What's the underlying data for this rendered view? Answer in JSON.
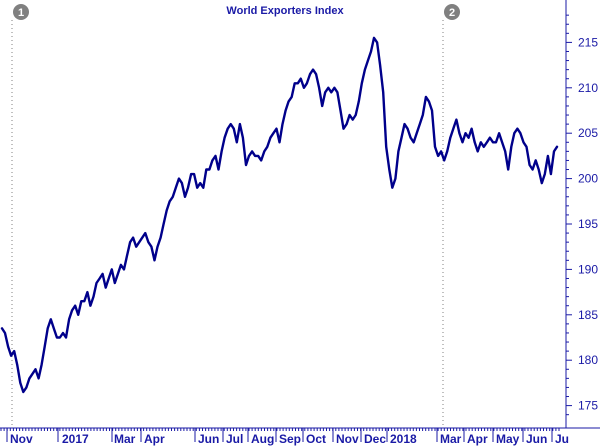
{
  "chart_data": {
    "type": "line",
    "title": "World Exporters Index",
    "series": [
      {
        "values": [
          183.5,
          183,
          181.5,
          180.5,
          181,
          179.5,
          177.5,
          176.5,
          177,
          178,
          178.5,
          179,
          178,
          179.5,
          181.5,
          183.5,
          184.5,
          183.5,
          182.5,
          182.5,
          183,
          182.5,
          184.5,
          185.5,
          186,
          185,
          186.5,
          186.5,
          187.5,
          186,
          187,
          188.5,
          189,
          189.5,
          188,
          189,
          190,
          188.5,
          189.5,
          190.5,
          190,
          191.5,
          193,
          193.5,
          192.5,
          193,
          193.5,
          194,
          193,
          192.5,
          191,
          192.5,
          193.5,
          195,
          196.5,
          197.5,
          198,
          199,
          200,
          199.5,
          198,
          199,
          200.5,
          200.5,
          199,
          199.5,
          199,
          201,
          201,
          202,
          202.5,
          201,
          203,
          204.5,
          205.5,
          206,
          205.5,
          204,
          206,
          204.5,
          201.5,
          202.5,
          203,
          202.5,
          202.5,
          202,
          203,
          203.5,
          204.5,
          205,
          205.5,
          204,
          206,
          207.5,
          208.5,
          209,
          210.5,
          210.5,
          211,
          210,
          210.5,
          211.5,
          212,
          211.5,
          210,
          208,
          209.5,
          210,
          209.5,
          210,
          209.5,
          207.5,
          205.5,
          206,
          207,
          206.5,
          207,
          208.5,
          210.5,
          212,
          213,
          214,
          215.5,
          215,
          212.5,
          209.5,
          203.5,
          201,
          199,
          200,
          203,
          204.5,
          206,
          205.5,
          204.5,
          204,
          205,
          206,
          207,
          209,
          208.5,
          207.5,
          203.5,
          202.5,
          203,
          202,
          203,
          204.5,
          205.5,
          206.5,
          205,
          204,
          205,
          204.5,
          205.5,
          204,
          203,
          204,
          203.5,
          204,
          204.5,
          204,
          204,
          205,
          204,
          203,
          201,
          203.5,
          205,
          205.5,
          205,
          204,
          203.5,
          201.5,
          201,
          202,
          201,
          199.5,
          200.5,
          202.5,
          200.5,
          203,
          203.5
        ]
      }
    ],
    "x_labels": [
      "Nov",
      "2017",
      "Mar",
      "Apr",
      "Jun",
      "Jul",
      "Aug",
      "Sep",
      "Oct",
      "Nov",
      "Dec",
      "2018",
      "Mar",
      "Apr",
      "May",
      "Jun",
      "Ju"
    ],
    "ylim": [
      173,
      219
    ],
    "y_ticks": [
      175,
      180,
      185,
      190,
      195,
      200,
      205,
      210,
      215
    ],
    "event_markers": [
      "1",
      "2"
    ],
    "grid": false,
    "colors": {
      "line": "#00008b",
      "axis": "#1a1aa6",
      "marker": "#808080",
      "background": "#ffffff"
    }
  }
}
